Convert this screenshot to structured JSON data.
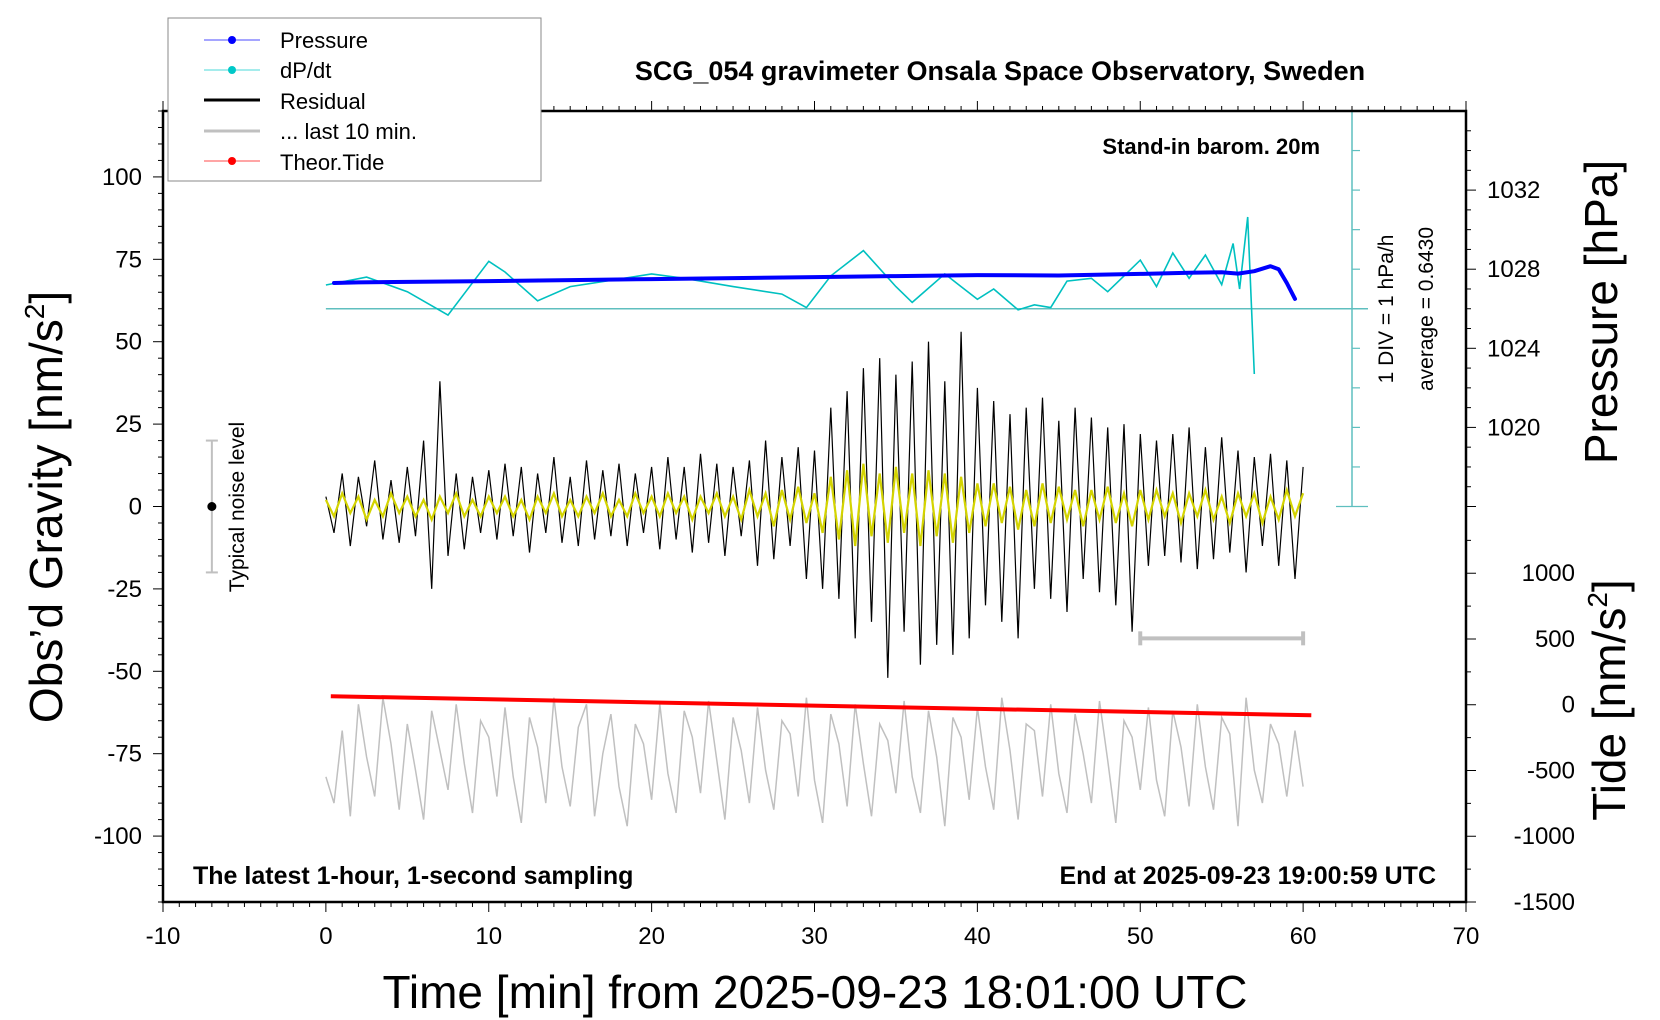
{
  "chart_data": [
    {
      "type": "line",
      "title": "SCG_054 gravimeter Onsala Space Observatory, Sweden",
      "subtitle_top_right": "Stand-in barom. 20m",
      "note_bottom_left": "The latest 1-hour, 1-second sampling",
      "note_bottom_right": "End at 2025-09-23 19:00:59 UTC",
      "xlabel": "Time [min] from 2025-09-23 18:01:00 UTC",
      "ylabel": "Obs’d Gravity [nm/s",
      "ylabel_sup": "2",
      "ylabel_end": "]",
      "y2label": "Pressure [hPa]",
      "y3label": "Tide [nm/s",
      "y3label_sup": "2",
      "y3label_end": "]",
      "dpdt_scale_label": "1 DIV = 1 hPa/h",
      "dpdt_average_label": "average = 0.6430",
      "noise_label": "Typical noise level",
      "xlim": [
        -10,
        70
      ],
      "ylim": [
        -120,
        120
      ],
      "y2lim": [
        996,
        1036
      ],
      "y3lim": [
        -1500,
        4515
      ],
      "dpdt_lim": [
        -5,
        5
      ],
      "dpdt_zero_gravity": 60,
      "xticks": [
        "-10",
        "0",
        "10",
        "20",
        "30",
        "40",
        "50",
        "60",
        "70"
      ],
      "yticks": [
        "100",
        "75",
        "50",
        "25",
        "0",
        "-25",
        "-50",
        "-75",
        "-100"
      ],
      "y2ticks": [
        "1032",
        "1028",
        "1024",
        "1020"
      ],
      "y3ticks": [
        "1000",
        "500",
        "0",
        "-500",
        "-1000",
        "-1500"
      ],
      "legend": {
        "placement": "top-left",
        "entries": [
          {
            "label": "Pressure",
            "color": "#0000ff",
            "marker": true
          },
          {
            "label": "dP/dt",
            "color": "#00c8c8",
            "marker": true
          },
          {
            "label": "Residual",
            "color": "#000000",
            "marker": false
          },
          {
            "label": "... last 10 min.",
            "color": "#c0c0c0",
            "marker": false
          },
          {
            "label": "Theor.Tide",
            "color": "#ff0000",
            "marker": true
          }
        ]
      },
      "colors": {
        "pressure": "#0000ff",
        "dpdt": "#00c0c0",
        "dpdt_axis": "#5fbfbf",
        "residual": "#000000",
        "filtered": "#d4d400",
        "last10": "#c0c0c0",
        "tide": "#ff0000"
      },
      "noise_level": {
        "x": -7,
        "center": 0,
        "range": [
          -20,
          20
        ]
      },
      "last10_bar": {
        "x": [
          50,
          60
        ],
        "y": -40
      },
      "residual": {
        "x_start": 0,
        "x_step": 0.5,
        "values": [
          3,
          -8,
          10,
          -12,
          9,
          -6,
          14,
          -10,
          8,
          -11,
          12,
          -9,
          20,
          -25,
          38,
          -15,
          10,
          -13,
          9,
          -8,
          11,
          -10,
          13,
          -9,
          12,
          -14,
          10,
          -8,
          15,
          -11,
          9,
          -12,
          14,
          -10,
          11,
          -9,
          13,
          -12,
          10,
          -8,
          12,
          -13,
          15,
          -10,
          12,
          -14,
          16,
          -11,
          13,
          -15,
          12,
          -9,
          14,
          -18,
          20,
          -16,
          15,
          -12,
          18,
          -22,
          17,
          -25,
          30,
          -28,
          35,
          -40,
          42,
          -35,
          45,
          -52,
          40,
          -38,
          44,
          -48,
          50,
          -42,
          38,
          -45,
          53,
          -40,
          36,
          -30,
          32,
          -35,
          28,
          -40,
          30,
          -25,
          33,
          -28,
          26,
          -32,
          30,
          -22,
          27,
          -26,
          24,
          -30,
          25,
          -38,
          22,
          -18,
          20,
          -15,
          22,
          -17,
          24,
          -19,
          18,
          -16,
          21,
          -14,
          17,
          -20,
          15,
          -12,
          16,
          -18,
          14,
          -22,
          12
        ]
      },
      "residual_filtered": {
        "x_start": 0,
        "x_step": 0.5,
        "values": [
          2,
          -3,
          4,
          -2,
          3,
          -4,
          2,
          -3,
          4,
          -2,
          3,
          -3,
          2,
          -4,
          3,
          -2,
          4,
          -3,
          2,
          -3,
          3,
          -2,
          3,
          -3,
          2,
          -4,
          3,
          -2,
          4,
          -3,
          2,
          -3,
          3,
          -2,
          4,
          -3,
          2,
          -3,
          4,
          -2,
          3,
          -3,
          4,
          -2,
          3,
          -4,
          3,
          -2,
          4,
          -3,
          3,
          -4,
          5,
          -3,
          4,
          -6,
          5,
          -4,
          6,
          -5,
          4,
          -8,
          9,
          -10,
          11,
          -12,
          13,
          -9,
          10,
          -11,
          12,
          -8,
          10,
          -12,
          11,
          -9,
          10,
          -11,
          9,
          -8,
          7,
          -6,
          7,
          -5,
          6,
          -7,
          5,
          -6,
          7,
          -5,
          6,
          -4,
          5,
          -6,
          5,
          -4,
          6,
          -5,
          4,
          -6,
          5,
          -4,
          5,
          -3,
          4,
          -5,
          4,
          -3,
          5,
          -4,
          3,
          -5,
          4,
          -3,
          4,
          -5,
          3,
          -4,
          5,
          -3,
          4
        ]
      },
      "last10": {
        "x_start": 0,
        "x_step": 0.5,
        "values": [
          -82,
          -90,
          -68,
          -94,
          -60,
          -76,
          -88,
          -58,
          -72,
          -92,
          -66,
          -80,
          -95,
          -62,
          -74,
          -86,
          -60,
          -78,
          -93,
          -65,
          -70,
          -88,
          -61,
          -82,
          -96,
          -64,
          -73,
          -90,
          -58,
          -79,
          -91,
          -67,
          -60,
          -94,
          -75,
          -63,
          -85,
          -97,
          -66,
          -72,
          -89,
          -60,
          -81,
          -93,
          -62,
          -70,
          -87,
          -59,
          -77,
          -95,
          -64,
          -74,
          -90,
          -61,
          -80,
          -92,
          -65,
          -69,
          -88,
          -58,
          -83,
          -96,
          -63,
          -72,
          -91,
          -60,
          -78,
          -94,
          -66,
          -71,
          -87,
          -59,
          -82,
          -93,
          -62,
          -76,
          -97,
          -64,
          -70,
          -89,
          -61,
          -79,
          -92,
          -58,
          -74,
          -95,
          -66,
          -68,
          -88,
          -60,
          -81,
          -93,
          -63,
          -75,
          -90,
          -59,
          -77,
          -96,
          -65,
          -70,
          -86,
          -61,
          -83,
          -94,
          -62,
          -73,
          -91,
          -60,
          -79,
          -92,
          -64,
          -69,
          -97,
          -58,
          -80,
          -90,
          -66,
          -72,
          -88,
          -68,
          -85
        ]
      },
      "pressure": {
        "x": [
          0.5,
          2,
          5,
          10,
          15,
          20,
          25,
          30,
          35,
          40,
          45,
          50,
          53,
          55,
          56,
          57,
          58,
          58.5,
          59,
          59.5
        ],
        "values": [
          1027.3,
          1027.33,
          1027.36,
          1027.4,
          1027.45,
          1027.5,
          1027.55,
          1027.6,
          1027.65,
          1027.7,
          1027.68,
          1027.76,
          1027.82,
          1027.85,
          1027.78,
          1027.9,
          1028.15,
          1028.0,
          1027.3,
          1026.5
        ]
      },
      "dpdt": {
        "x": [
          0,
          2.5,
          5,
          7.5,
          10,
          11,
          13,
          15,
          18,
          20,
          22,
          25,
          28,
          29.5,
          31,
          33,
          35,
          36,
          38,
          39,
          40,
          41,
          42.5,
          43.5,
          44.5,
          45.5,
          47,
          48,
          49,
          50,
          51,
          52,
          53,
          54,
          55,
          55.7,
          56.1,
          56.6,
          57
        ],
        "values": [
          0.6,
          0.8,
          0.43,
          -0.16,
          1.2,
          0.93,
          0.2,
          0.56,
          0.75,
          0.88,
          0.77,
          0.56,
          0.37,
          0.03,
          0.83,
          1.47,
          0.56,
          0.16,
          0.88,
          0.56,
          0.24,
          0.5,
          -0.03,
          0.1,
          0.03,
          0.7,
          0.77,
          0.43,
          0.83,
          1.23,
          0.56,
          1.41,
          0.77,
          1.36,
          0.61,
          1.65,
          0.5,
          2.32,
          -1.65
        ]
      },
      "tide": {
        "x": [
          0.3,
          60.5
        ],
        "values": [
          65,
          -80
        ]
      }
    }
  ]
}
